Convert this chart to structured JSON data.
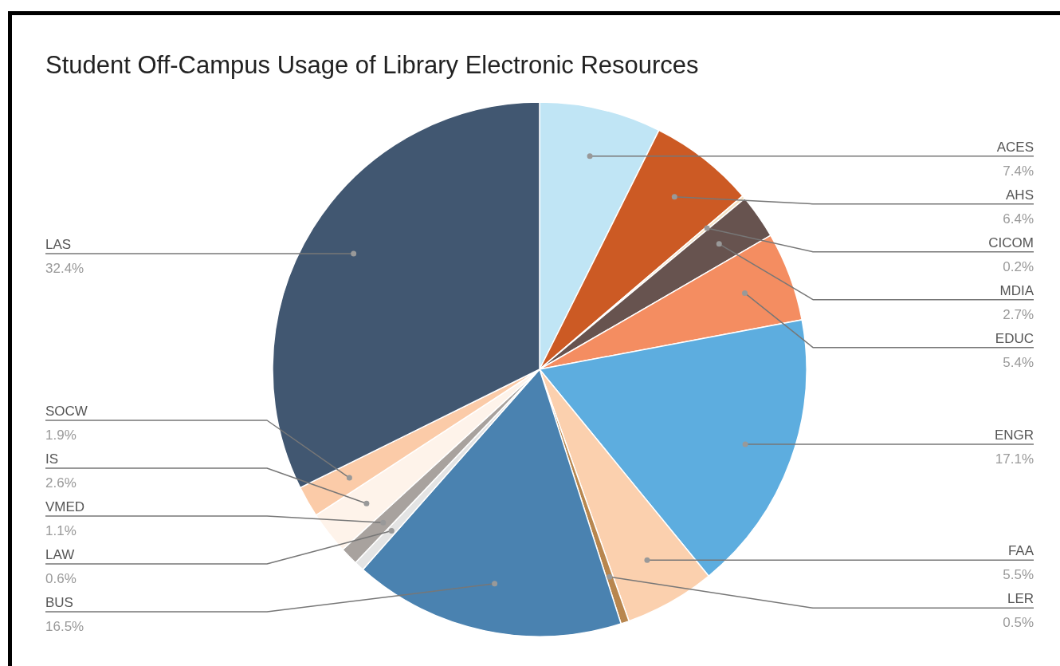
{
  "chart_data": {
    "type": "pie",
    "title": "Student Off-Campus Usage of Library Electronic Resources",
    "categories": [
      "ACES",
      "AHS",
      "CICOM",
      "MDIA",
      "EDUC",
      "ENGR",
      "FAA",
      "LER",
      "BUS",
      "LAW",
      "VMED",
      "IS",
      "SOCW",
      "LAS"
    ],
    "values": [
      7.4,
      6.4,
      0.2,
      2.7,
      5.4,
      17.1,
      5.5,
      0.5,
      16.5,
      0.6,
      1.1,
      2.6,
      1.9,
      32.4
    ],
    "value_labels": [
      "7.4%",
      "6.4%",
      "0.2%",
      "2.7%",
      "5.4%",
      "17.1%",
      "5.5%",
      "0.5%",
      "16.5%",
      "0.6%",
      "1.1%",
      "2.6%",
      "1.9%",
      "32.4%"
    ],
    "colors": [
      "#c0e5f5",
      "#cc5a24",
      "#f3e3c6",
      "#67534f",
      "#f48d61",
      "#5daddf",
      "#fbd0ae",
      "#b8864e",
      "#4a82b0",
      "#e4e4e4",
      "#a8a29e",
      "#fef3ea",
      "#fbcba8",
      "#415771"
    ],
    "legend": false
  }
}
